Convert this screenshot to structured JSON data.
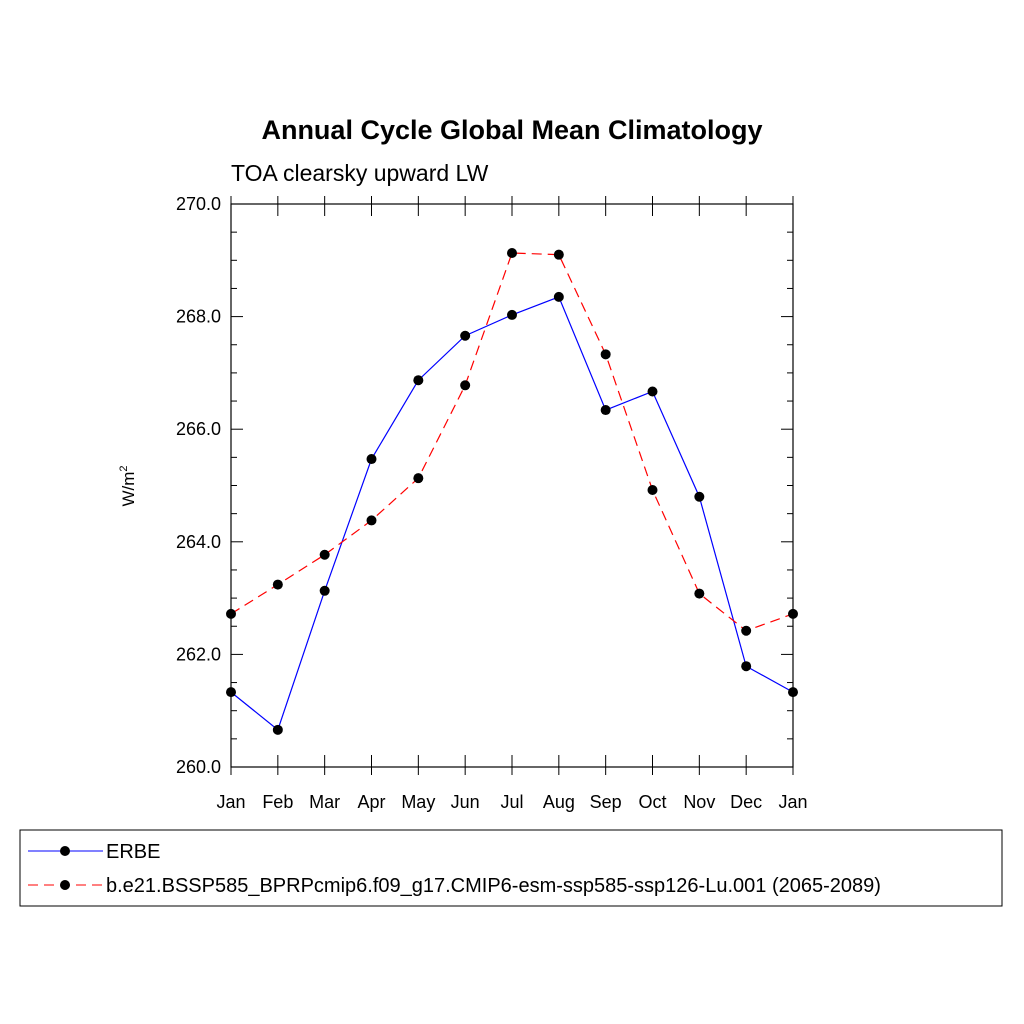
{
  "chart_data": {
    "type": "line",
    "title": "Annual Cycle Global Mean Climatology",
    "subtitle": "TOA clearsky upward LW",
    "ylabel": "W/m",
    "ylabel_superscript": "2",
    "xlabel": "",
    "categories": [
      "Jan",
      "Feb",
      "Mar",
      "Apr",
      "May",
      "Jun",
      "Jul",
      "Aug",
      "Sep",
      "Oct",
      "Nov",
      "Dec",
      "Jan"
    ],
    "ylim": [
      260.0,
      270.0
    ],
    "yticks": [
      "260.0",
      "262.0",
      "264.0",
      "266.0",
      "268.0",
      "270.0"
    ],
    "legend_position": "bottom",
    "series": [
      {
        "name": "ERBE",
        "color": "#0000ff",
        "dash": "solid",
        "marker": "filled-circle",
        "values": [
          261.33,
          260.66,
          263.13,
          265.47,
          266.87,
          267.66,
          268.03,
          268.35,
          266.34,
          266.67,
          264.8,
          261.79,
          261.33
        ]
      },
      {
        "name": "b.e21.BSSP585_BPRPcmip6.f09_g17.CMIP6-esm-ssp585-ssp126-Lu.001 (2065-2089)",
        "color": "#ff0000",
        "dash": "dashed",
        "marker": "filled-circle",
        "values": [
          262.72,
          263.24,
          263.77,
          264.38,
          265.13,
          266.78,
          269.13,
          269.1,
          267.33,
          264.92,
          263.08,
          262.42,
          262.72
        ]
      }
    ]
  }
}
